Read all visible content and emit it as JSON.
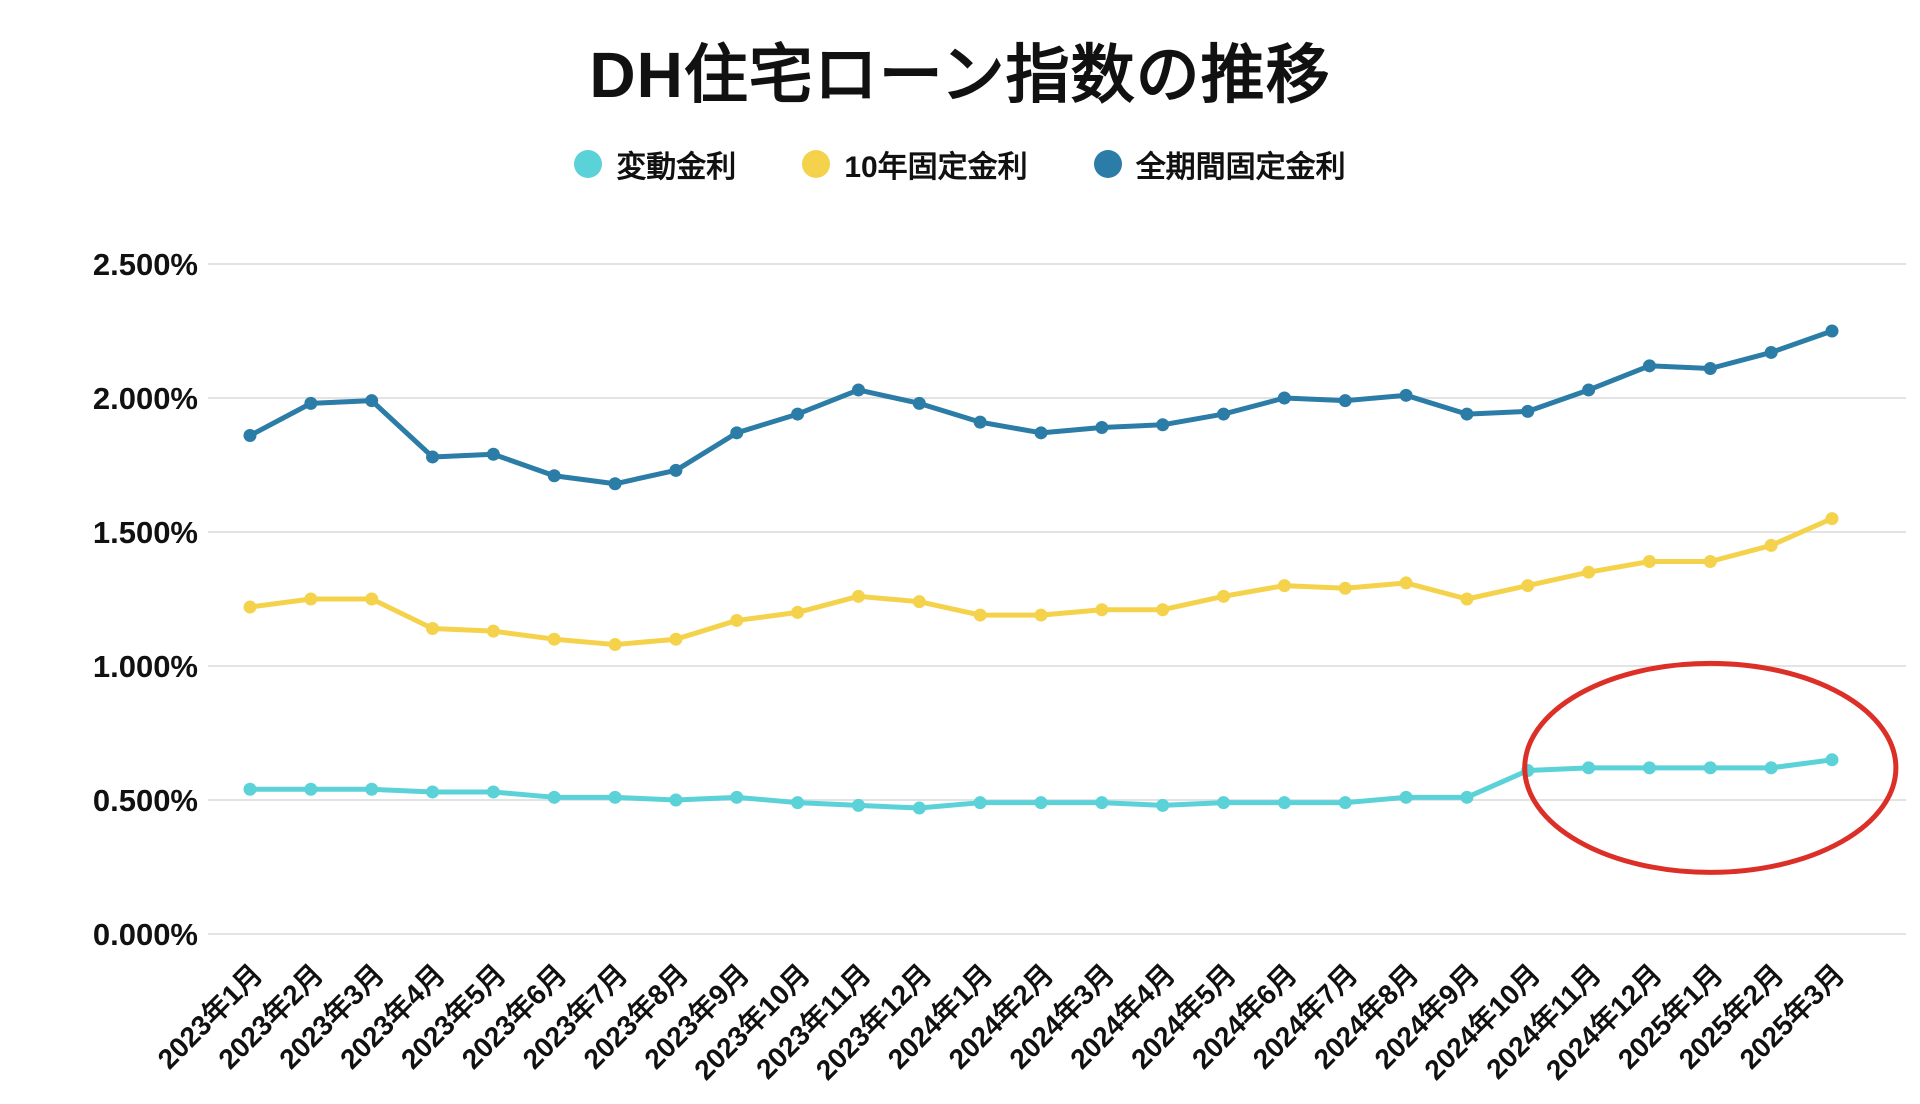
{
  "title": "DH住宅ローン指数の推移",
  "chart_data": {
    "type": "line",
    "title": "DH住宅ローン指数の推移",
    "categories": [
      "2023年1月",
      "2023年2月",
      "2023年3月",
      "2023年4月",
      "2023年5月",
      "2023年6月",
      "2023年7月",
      "2023年8月",
      "2023年9月",
      "2023年10月",
      "2023年11月",
      "2023年12月",
      "2024年1月",
      "2024年2月",
      "2024年3月",
      "2024年4月",
      "2024年5月",
      "2024年6月",
      "2024年7月",
      "2024年8月",
      "2024年9月",
      "2024年10月",
      "2024年11月",
      "2024年12月",
      "2025年1月",
      "2025年2月",
      "2025年3月"
    ],
    "series": [
      {
        "id": "full-term-fixed-rate",
        "name": "全期間固定金利",
        "color": "#2b7ca6",
        "values": [
          1.86,
          1.98,
          1.99,
          1.78,
          1.79,
          1.71,
          1.68,
          1.73,
          1.87,
          1.94,
          2.03,
          1.98,
          1.91,
          1.87,
          1.89,
          1.9,
          1.94,
          2.0,
          1.99,
          2.01,
          1.94,
          1.95,
          2.03,
          2.12,
          2.11,
          2.17,
          2.25
        ]
      },
      {
        "id": "10y-fixed-rate",
        "name": "10年固定金利",
        "color": "#f5d24b",
        "values": [
          1.22,
          1.25,
          1.25,
          1.14,
          1.13,
          1.1,
          1.08,
          1.1,
          1.17,
          1.2,
          1.26,
          1.24,
          1.19,
          1.19,
          1.21,
          1.21,
          1.26,
          1.3,
          1.29,
          1.31,
          1.25,
          1.3,
          1.35,
          1.39,
          1.39,
          1.45,
          1.55
        ]
      },
      {
        "id": "variable-rate",
        "name": "変動金利",
        "color": "#5bd1d8",
        "values": [
          0.54,
          0.54,
          0.54,
          0.53,
          0.53,
          0.51,
          0.51,
          0.5,
          0.51,
          0.49,
          0.48,
          0.47,
          0.49,
          0.49,
          0.49,
          0.48,
          0.49,
          0.49,
          0.49,
          0.51,
          0.51,
          0.61,
          0.62,
          0.62,
          0.62,
          0.62,
          0.65
        ]
      }
    ],
    "legend_order": [
      "variable-rate",
      "10y-fixed-rate",
      "full-term-fixed-rate"
    ],
    "ylim": [
      0,
      2.5
    ],
    "ytick_step": 0.5,
    "ytick_labels": [
      "0.000%",
      "0.500%",
      "1.000%",
      "1.500%",
      "2.000%",
      "2.500%"
    ],
    "grid": true,
    "grid_color": "#e3e3e3",
    "text_color": "#111111",
    "legend_position": "top",
    "annotation": {
      "type": "ellipse",
      "color": "#dc2f28",
      "center_index": 24.0,
      "center_value": 0.62,
      "rx_index": 3.05,
      "ry_value": 0.39,
      "note": "変動金利の2024年10月以降の上昇を囲む赤い楕円"
    }
  }
}
